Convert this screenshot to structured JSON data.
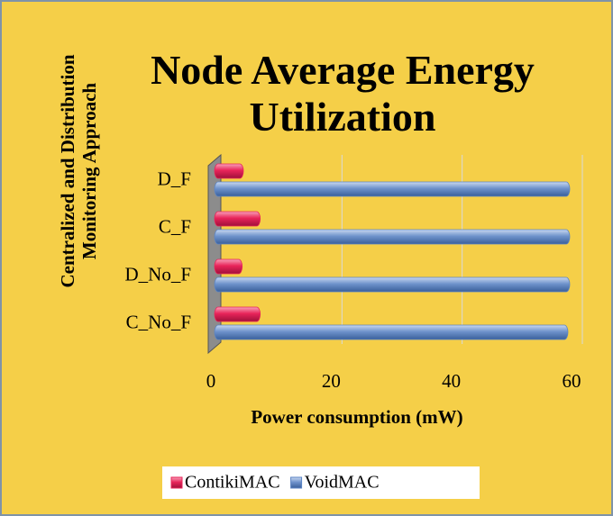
{
  "chart_data": {
    "type": "hbar",
    "title": "Node Average Energy Utilization",
    "x_label": "Power consumption (mW)",
    "y_label": "Centralized and Distribution Monitoring Approach",
    "categories": [
      "D_F",
      "C_F",
      "D_No_F",
      "C_No_F"
    ],
    "series": [
      {
        "name": "ContikiMAC",
        "color": "#e8245a",
        "values": [
          4.2,
          7,
          4,
          7
        ]
      },
      {
        "name": "VoidMAC",
        "color": "#5b84c4",
        "values": [
          58.5,
          58.5,
          58.5,
          58.2
        ]
      }
    ],
    "xlim": [
      0,
      60
    ],
    "xticks": [
      0,
      20,
      40,
      60
    ],
    "grid": true,
    "legend": "bottom"
  }
}
